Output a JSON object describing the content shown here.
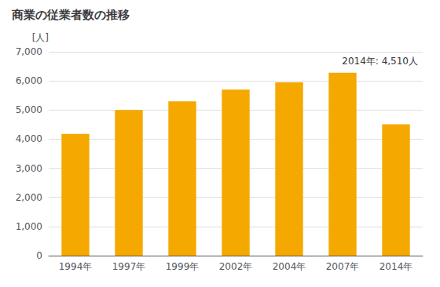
{
  "chart_data": {
    "type": "bar",
    "title": "商業の従業者数の推移",
    "ylabel": "[人]",
    "annotation": "2014年: 4,510人",
    "categories": [
      "1994年",
      "1997年",
      "1999年",
      "2002年",
      "2004年",
      "2007年",
      "2014年"
    ],
    "values": [
      4180,
      5000,
      5300,
      5700,
      5950,
      6280,
      4510
    ],
    "color": "#F5A800",
    "ylim": [
      0,
      7000
    ],
    "yticks": [
      0,
      {
        "value": 1000,
        "label": "1,000"
      },
      {
        "value": 2000,
        "label": "2,000"
      },
      {
        "value": 3000,
        "label": "3,000"
      },
      {
        "value": 4000,
        "label": "4,000"
      },
      {
        "value": 5000,
        "label": "5,000"
      },
      {
        "value": 6000,
        "label": "6,000"
      },
      {
        "value": 7000,
        "label": "7,000"
      }
    ],
    "grid": true
  }
}
